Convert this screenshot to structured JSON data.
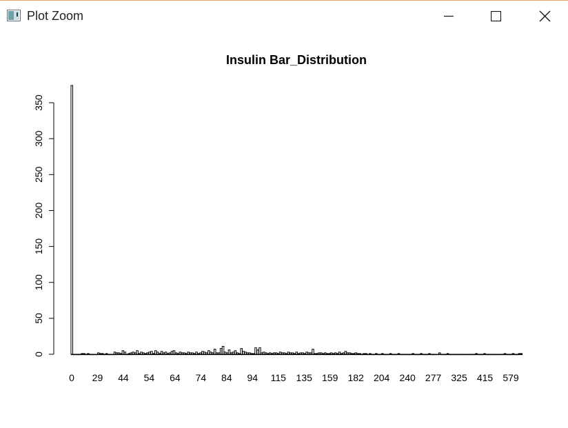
{
  "window": {
    "title": "Plot Zoom",
    "icons": {
      "app": "plot-window-icon",
      "minimize": "minimize-icon",
      "maximize": "maximize-icon",
      "close": "close-icon"
    }
  },
  "chart_data": {
    "type": "bar",
    "title": "Insulin Bar_Distribution",
    "xlabel": "",
    "ylabel": "",
    "ylim": [
      0,
      374
    ],
    "yticks": [
      0,
      50,
      100,
      150,
      200,
      250,
      300,
      350
    ],
    "xtick_labels": [
      "0",
      "29",
      "44",
      "54",
      "64",
      "74",
      "84",
      "94",
      "115",
      "135",
      "159",
      "182",
      "204",
      "240",
      "277",
      "325",
      "415",
      "579"
    ],
    "grid": false,
    "legend": "none",
    "bar_color": "#ffffff",
    "bar_border": "#000000",
    "values": [
      374,
      0,
      0,
      0,
      0,
      1,
      1,
      0,
      1,
      0,
      0,
      0,
      0,
      2,
      1,
      1,
      0,
      1,
      0,
      0,
      0,
      3,
      2,
      2,
      1,
      5,
      3,
      0,
      1,
      2,
      3,
      2,
      5,
      1,
      3,
      2,
      1,
      2,
      3,
      4,
      1,
      5,
      3,
      1,
      4,
      2,
      3,
      1,
      2,
      4,
      5,
      2,
      1,
      3,
      2,
      2,
      1,
      3,
      2,
      2,
      1,
      3,
      1,
      2,
      4,
      3,
      2,
      5,
      3,
      2,
      7,
      2,
      2,
      8,
      11,
      3,
      2,
      6,
      2,
      3,
      5,
      2,
      1,
      8,
      4,
      3,
      2,
      2,
      1,
      1,
      9,
      6,
      9,
      2,
      3,
      2,
      1,
      2,
      1,
      2,
      2,
      1,
      3,
      2,
      2,
      1,
      3,
      2,
      2,
      1,
      3,
      1,
      2,
      2,
      1,
      3,
      2,
      2,
      7,
      1,
      1,
      2,
      2,
      1,
      2,
      1,
      1,
      2,
      1,
      2,
      1,
      3,
      1,
      2,
      4,
      2,
      2,
      1,
      1,
      2,
      1,
      1,
      0,
      1,
      1,
      0,
      1,
      0,
      0,
      1,
      0,
      0,
      1,
      0,
      0,
      0,
      1,
      0,
      0,
      0,
      1,
      0,
      0,
      0,
      0,
      0,
      0,
      1,
      0,
      0,
      0,
      1,
      0,
      0,
      0,
      1,
      0,
      0,
      0,
      0,
      2,
      0,
      0,
      0,
      1,
      0,
      0,
      0,
      0,
      0,
      0,
      0,
      0,
      0,
      0,
      0,
      0,
      0,
      1,
      0,
      0,
      0,
      1,
      0,
      0,
      0,
      0,
      0,
      0,
      0,
      0,
      0,
      1,
      0,
      0,
      0,
      1,
      0,
      0,
      1,
      1
    ]
  }
}
